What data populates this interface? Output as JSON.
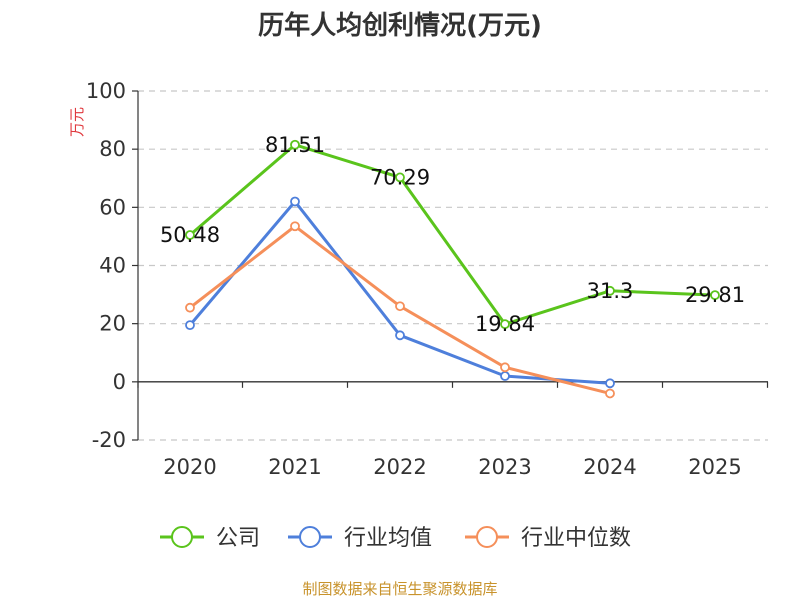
{
  "chart_data": {
    "type": "line",
    "title": "历年人均创利情况(万元)",
    "ylabel": "万元",
    "categories": [
      "2020",
      "2021",
      "2022",
      "2023",
      "2024",
      "2025"
    ],
    "ylim": [
      -20,
      100
    ],
    "yticks": [
      -20,
      0,
      20,
      40,
      60,
      80,
      100
    ],
    "grid": true,
    "legend_position": "bottom",
    "series": [
      {
        "name": "公司",
        "color": "#5ac41c",
        "values": [
          50.48,
          81.51,
          70.29,
          19.84,
          31.3,
          29.81
        ],
        "labels": [
          "50.48",
          "81.51",
          "70.29",
          "19.84",
          "31.3",
          "29.81"
        ]
      },
      {
        "name": "行业均值",
        "color": "#4e7fdb",
        "values": [
          19.5,
          62.0,
          16.0,
          2.0,
          -0.5,
          null
        ]
      },
      {
        "name": "行业中位数",
        "color": "#f58f5a",
        "values": [
          25.5,
          53.5,
          26.0,
          5.0,
          -4.0,
          null
        ]
      }
    ],
    "source": "制图数据来自恒生聚源数据库"
  }
}
